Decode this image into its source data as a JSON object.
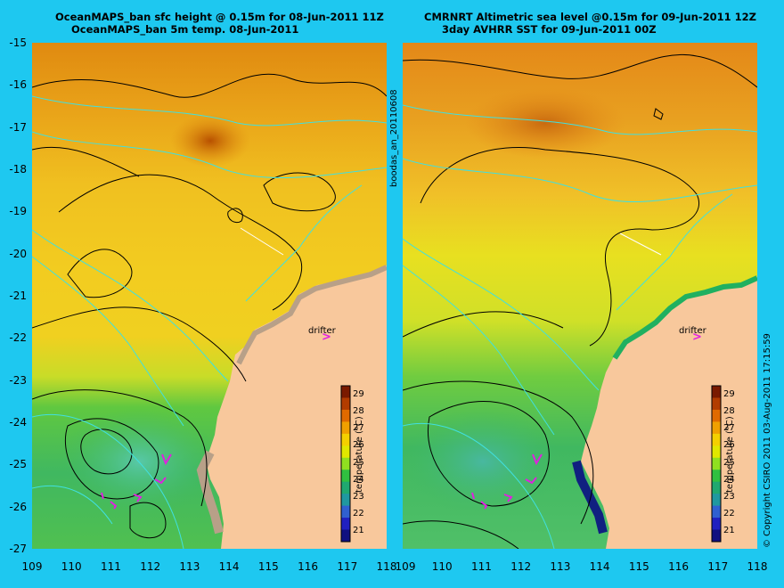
{
  "left_panel": {
    "title_line1": "OceanMAPS_ban sfc height @ 0.15m for 08-Jun-2011 11Z",
    "title_line2": "OceanMAPS_ban 5m temp. 08-Jun-2011"
  },
  "right_panel": {
    "title_line1": "CMRNRT Altimetric sea level  @0.15m  for 09-Jun-2011 12Z",
    "title_line2": "3day AVHRR SST for 09-Jun-2011 00Z"
  },
  "y_ticks": [
    "-15",
    "-16",
    "-17",
    "-18",
    "-19",
    "-20",
    "-21",
    "-22",
    "-23",
    "-24",
    "-25",
    "-26",
    "-27"
  ],
  "x_ticks_left": [
    "109",
    "110",
    "111",
    "112",
    "113",
    "114",
    "115",
    "116",
    "117",
    "118"
  ],
  "x_ticks_right": [
    "110",
    "111",
    "112",
    "113",
    "114",
    "115",
    "116",
    "117",
    "118"
  ],
  "x_tick_right_first": "109",
  "side_label": "boodas_an_20110608",
  "copyright": "© Copyright CSIRO 2011   03-Aug-2011 17:15:59",
  "colorbar": {
    "title": "temperature (°C)",
    "labels": [
      "29",
      "28",
      "27",
      "26",
      "25",
      "24",
      "23",
      "22",
      "21"
    ],
    "colors": [
      "#7a1a00",
      "#b23c00",
      "#e06a00",
      "#f0a000",
      "#f4d000",
      "#e0e800",
      "#90e020",
      "#30c040",
      "#20a870",
      "#2098a0",
      "#3060d0",
      "#2020c0",
      "#101080"
    ]
  },
  "drifter_label": "drifter",
  "drifter_arrow": ">"
}
